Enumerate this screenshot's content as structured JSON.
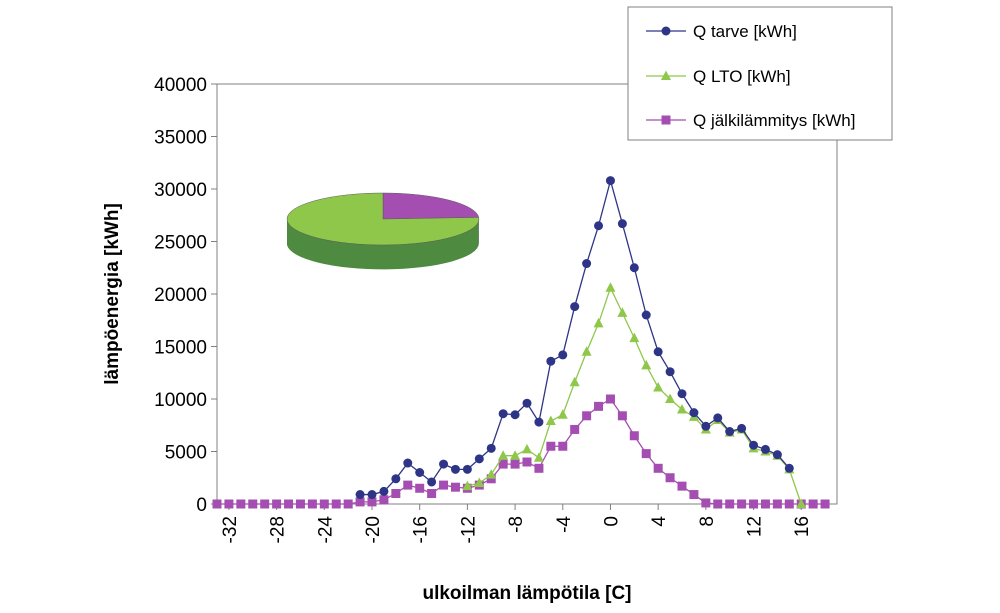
{
  "chart_data": {
    "type": "line",
    "title": "",
    "xlabel": "ulkoilman lämpötila [C]",
    "ylabel": "lämpöenergia [kWh]",
    "xlim": [
      -33,
      19
    ],
    "ylim": [
      0,
      40000
    ],
    "xticks": [
      -32,
      -28,
      -24,
      -20,
      -16,
      -12,
      -8,
      -4,
      0,
      4,
      8,
      12,
      16
    ],
    "yticks": [
      0,
      5000,
      10000,
      15000,
      20000,
      25000,
      30000,
      35000,
      40000
    ],
    "grid": "none",
    "legend_position": "top-right",
    "x": [
      -33,
      -32,
      -31,
      -30,
      -29,
      -28,
      -27,
      -26,
      -25,
      -24,
      -23,
      -22,
      -21,
      -20,
      -19,
      -18,
      -17,
      -16,
      -15,
      -14,
      -13,
      -12,
      -11,
      -10,
      -9,
      -8,
      -7,
      -6,
      -5,
      -4,
      -3,
      -2,
      -1,
      0,
      1,
      2,
      3,
      4,
      5,
      6,
      7,
      8,
      9,
      10,
      11,
      12,
      13,
      14,
      15,
      16,
      17,
      18
    ],
    "series": [
      {
        "name": "Q tarve [kWh]",
        "color": "#2e3586",
        "marker": "circle",
        "values": [
          null,
          null,
          null,
          null,
          null,
          null,
          null,
          null,
          null,
          null,
          null,
          null,
          900,
          900,
          1200,
          2400,
          3900,
          3000,
          2100,
          3800,
          3300,
          3300,
          4300,
          5300,
          8600,
          8500,
          9600,
          7800,
          13600,
          14200,
          18800,
          22900,
          26500,
          30800,
          26700,
          22500,
          18000,
          14500,
          12600,
          10500,
          8700,
          7400,
          8200,
          6900,
          7200,
          5600,
          5200,
          4700,
          3400,
          null,
          null,
          null
        ]
      },
      {
        "name": "Q LTO [kWh]",
        "color": "#8fc74a",
        "marker": "triangle",
        "values": [
          null,
          null,
          null,
          null,
          null,
          null,
          null,
          null,
          null,
          null,
          null,
          null,
          null,
          null,
          null,
          null,
          null,
          null,
          null,
          null,
          null,
          1700,
          2000,
          2800,
          4600,
          4600,
          5200,
          4400,
          7900,
          8500,
          11600,
          14500,
          17200,
          20600,
          18200,
          15800,
          13200,
          11100,
          10000,
          9000,
          8300,
          7100,
          8000,
          6800,
          7100,
          5300,
          5000,
          4600,
          3300,
          0,
          null,
          null
        ]
      },
      {
        "name": "Q jälkilämmitys [kWh]",
        "color": "#a54eb2",
        "marker": "square",
        "values": [
          0,
          0,
          0,
          0,
          0,
          0,
          0,
          0,
          0,
          0,
          0,
          0,
          200,
          200,
          400,
          1000,
          1800,
          1500,
          1000,
          1800,
          1600,
          1500,
          1800,
          2400,
          3800,
          3800,
          4000,
          3400,
          5500,
          5500,
          7100,
          8400,
          9300,
          10000,
          8400,
          6500,
          4800,
          3400,
          2500,
          1700,
          900,
          100,
          0,
          0,
          0,
          0,
          0,
          0,
          0,
          0,
          0,
          0
        ]
      }
    ],
    "inset_pie": {
      "type": "pie",
      "series": [
        {
          "share": 0.76,
          "color": "#8fc74a",
          "side_color": "#4e8a3f"
        },
        {
          "share": 0.24,
          "color": "#a54eb2",
          "side_color": "#7a2f85"
        }
      ]
    }
  }
}
